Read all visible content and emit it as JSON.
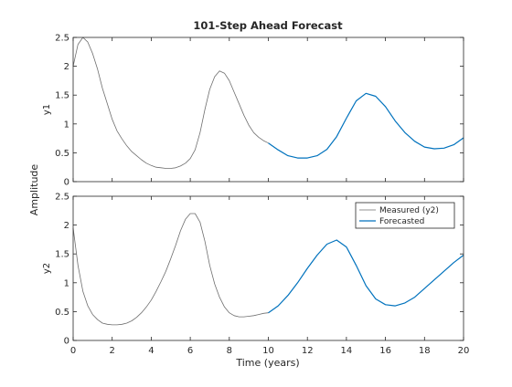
{
  "chart_data": {
    "type": "line",
    "title": "101-Step Ahead Forecast",
    "xlabel": "Time (years)",
    "ylabel": "Amplitude",
    "xlim": [
      0,
      20
    ],
    "x_ticks": [
      0,
      2,
      4,
      6,
      8,
      10,
      12,
      14,
      16,
      18,
      20
    ],
    "grid": false,
    "legend": {
      "placement": "top-right",
      "subplot": "y2",
      "entries": [
        {
          "name": "Measured (y2)",
          "color": "#6e6e6e"
        },
        {
          "name": "Forecasted",
          "color": "#0072bd"
        }
      ]
    },
    "subplots": [
      {
        "ylabel": "y1",
        "ylim": [
          0,
          2.5
        ],
        "y_ticks": [
          0,
          0.5,
          1,
          1.5,
          2,
          2.5
        ],
        "series": [
          {
            "role": "measured",
            "color": "#6e6e6e",
            "x": [
              0,
              0.25,
              0.5,
              0.75,
              1,
              1.25,
              1.5,
              1.75,
              2,
              2.25,
              2.5,
              2.75,
              3,
              3.25,
              3.5,
              3.75,
              4,
              4.25,
              4.5,
              4.75,
              5,
              5.25,
              5.5,
              5.75,
              6,
              6.25,
              6.5,
              6.75,
              7,
              7.25,
              7.5,
              7.75,
              8,
              8.25,
              8.5,
              8.75,
              9,
              9.25,
              9.5,
              9.75,
              10
            ],
            "y": [
              2.0,
              2.38,
              2.5,
              2.42,
              2.22,
              1.95,
              1.62,
              1.35,
              1.08,
              0.88,
              0.74,
              0.62,
              0.52,
              0.45,
              0.38,
              0.32,
              0.28,
              0.25,
              0.24,
              0.23,
              0.23,
              0.24,
              0.27,
              0.32,
              0.4,
              0.55,
              0.85,
              1.25,
              1.6,
              1.82,
              1.92,
              1.88,
              1.75,
              1.55,
              1.35,
              1.15,
              0.98,
              0.85,
              0.77,
              0.71,
              0.67
            ]
          },
          {
            "role": "forecast",
            "color": "#0072bd",
            "x": [
              10,
              10.5,
              11,
              11.5,
              12,
              12.5,
              13,
              13.5,
              14,
              14.5,
              15,
              15.5,
              16,
              16.5,
              17,
              17.5,
              18,
              18.5,
              19,
              19.5,
              20
            ],
            "y": [
              0.67,
              0.55,
              0.45,
              0.41,
              0.41,
              0.45,
              0.56,
              0.78,
              1.1,
              1.4,
              1.53,
              1.48,
              1.3,
              1.05,
              0.85,
              0.7,
              0.6,
              0.57,
              0.58,
              0.64,
              0.76
            ]
          }
        ]
      },
      {
        "ylabel": "y2",
        "ylim": [
          0,
          2.5
        ],
        "y_ticks": [
          0,
          0.5,
          1,
          1.5,
          2,
          2.5
        ],
        "series": [
          {
            "role": "measured",
            "color": "#6e6e6e",
            "x": [
              0,
              0.25,
              0.5,
              0.75,
              1,
              1.25,
              1.5,
              1.75,
              2,
              2.25,
              2.5,
              2.75,
              3,
              3.25,
              3.5,
              3.75,
              4,
              4.25,
              4.5,
              4.75,
              5,
              5.25,
              5.5,
              5.75,
              6,
              6.25,
              6.5,
              6.75,
              7,
              7.25,
              7.5,
              7.75,
              8,
              8.25,
              8.5,
              8.75,
              9,
              9.25,
              9.5,
              9.75,
              10
            ],
            "y": [
              1.95,
              1.3,
              0.85,
              0.6,
              0.45,
              0.36,
              0.3,
              0.28,
              0.27,
              0.27,
              0.28,
              0.3,
              0.34,
              0.4,
              0.48,
              0.58,
              0.7,
              0.85,
              1.02,
              1.2,
              1.42,
              1.65,
              1.9,
              2.1,
              2.2,
              2.2,
              2.05,
              1.72,
              1.3,
              0.98,
              0.75,
              0.58,
              0.48,
              0.43,
              0.41,
              0.41,
              0.42,
              0.43,
              0.45,
              0.47,
              0.48
            ]
          },
          {
            "role": "forecast",
            "color": "#0072bd",
            "x": [
              10,
              10.5,
              11,
              11.5,
              12,
              12.5,
              13,
              13.5,
              14,
              14.5,
              15,
              15.5,
              16,
              16.5,
              17,
              17.5,
              18,
              18.5,
              19,
              19.5,
              20
            ],
            "y": [
              0.48,
              0.6,
              0.78,
              1.0,
              1.25,
              1.48,
              1.67,
              1.74,
              1.62,
              1.3,
              0.95,
              0.72,
              0.62,
              0.6,
              0.65,
              0.75,
              0.9,
              1.05,
              1.2,
              1.35,
              1.48
            ]
          }
        ]
      }
    ]
  }
}
